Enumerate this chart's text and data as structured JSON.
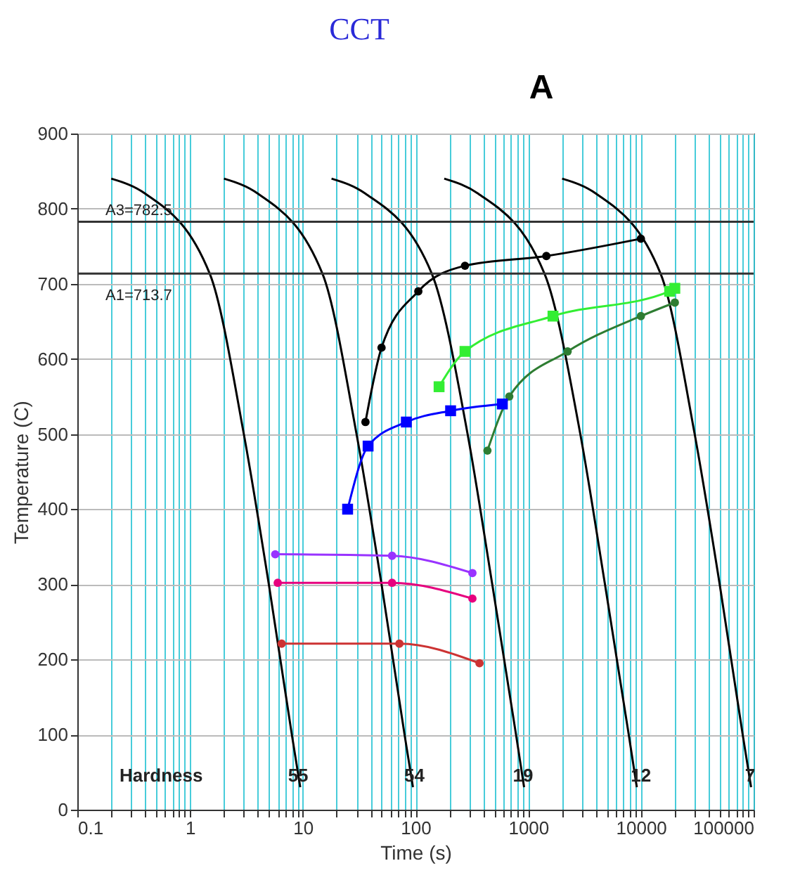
{
  "chart_data": {
    "type": "line",
    "title": "CCT",
    "xlabel": "Time (s)",
    "ylabel": "Temperature (C)",
    "log": "x",
    "xlim": [
      0.1,
      100000
    ],
    "ylim": [
      0,
      900
    ],
    "xticks": [
      0.1,
      {
        "value": 0.2,
        "label": null
      },
      {
        "value": 0.3,
        "label": null
      },
      {
        "value": 0.4,
        "label": null
      },
      {
        "value": 0.5,
        "label": null
      },
      {
        "value": 0.6,
        "label": null
      },
      {
        "value": 0.7,
        "label": null
      },
      {
        "value": 0.8,
        "label": null
      },
      {
        "value": 0.9,
        "label": null
      },
      1,
      {
        "value": 2,
        "label": null
      },
      {
        "value": 3,
        "label": null
      },
      {
        "value": 4,
        "label": null
      },
      {
        "value": 5,
        "label": null
      },
      {
        "value": 6,
        "label": null
      },
      {
        "value": 7,
        "label": null
      },
      {
        "value": 8,
        "label": null
      },
      {
        "value": 9,
        "label": null
      },
      10,
      {
        "value": 20,
        "label": null
      },
      {
        "value": 30,
        "label": null
      },
      {
        "value": 40,
        "label": null
      },
      {
        "value": 50,
        "label": null
      },
      {
        "value": 60,
        "label": null
      },
      {
        "value": 70,
        "label": null
      },
      {
        "value": 80,
        "label": null
      },
      {
        "value": 90,
        "label": null
      },
      100,
      {
        "value": 200,
        "label": null
      },
      {
        "value": 300,
        "label": null
      },
      {
        "value": 400,
        "label": null
      },
      {
        "value": 500,
        "label": null
      },
      {
        "value": 600,
        "label": null
      },
      {
        "value": 700,
        "label": null
      },
      {
        "value": 800,
        "label": null
      },
      {
        "value": 900,
        "label": null
      },
      1000,
      {
        "value": 2000,
        "label": null
      },
      {
        "value": 3000,
        "label": null
      },
      {
        "value": 4000,
        "label": null
      },
      {
        "value": 5000,
        "label": null
      },
      {
        "value": 6000,
        "label": null
      },
      {
        "value": 7000,
        "label": null
      },
      {
        "value": 8000,
        "label": null
      },
      {
        "value": 9000,
        "label": null
      },
      10000,
      {
        "value": 20000,
        "label": null
      },
      {
        "value": 30000,
        "label": null
      },
      {
        "value": 40000,
        "label": null
      },
      {
        "value": 50000,
        "label": null
      },
      {
        "value": 60000,
        "label": null
      },
      {
        "value": 70000,
        "label": null
      },
      {
        "value": 80000,
        "label": null
      },
      {
        "value": 90000,
        "label": null
      },
      100000
    ],
    "yticks": [
      0,
      100,
      200,
      300,
      400,
      500,
      600,
      700,
      800,
      900
    ],
    "grid": true,
    "series": [
      {
        "color": "#000000",
        "marker": "none",
        "x": [
          0.2,
          0.4,
          1.5,
          3,
          5,
          8,
          9.5
        ],
        "values": [
          840,
          820,
          713,
          500,
          300,
          100,
          30
        ]
      },
      {
        "color": "#000000",
        "marker": "none",
        "x": [
          2,
          4,
          15,
          30,
          50,
          80,
          95
        ],
        "values": [
          840,
          820,
          713,
          500,
          300,
          100,
          30
        ]
      },
      {
        "color": "#000000",
        "marker": "none",
        "x": [
          18,
          36,
          140,
          290,
          480,
          780,
          920
        ],
        "values": [
          840,
          820,
          713,
          500,
          300,
          100,
          30
        ]
      },
      {
        "color": "#000000",
        "marker": "none",
        "x": [
          180,
          360,
          1400,
          2900,
          4800,
          7800,
          9200
        ],
        "values": [
          840,
          820,
          713,
          500,
          300,
          100,
          30
        ]
      },
      {
        "color": "#000000",
        "marker": "none",
        "x": [
          2000,
          4000,
          15000,
          30000,
          50000,
          80000,
          95000
        ],
        "values": [
          840,
          820,
          713,
          500,
          300,
          100,
          30
        ]
      },
      {
        "color": "#000000",
        "marker": "circle",
        "x": [
          36,
          50,
          106,
          275,
          1450,
          10000
        ],
        "values": [
          516,
          615,
          690,
          724,
          737,
          760
        ]
      },
      {
        "color": "#33ee33",
        "marker": "square",
        "x": [
          162,
          275,
          1660,
          18000,
          20000
        ],
        "values": [
          563,
          610,
          657,
          690,
          694
        ]
      },
      {
        "color": "#2e7d32",
        "marker": "circle",
        "x": [
          435,
          680,
          2240,
          10000,
          20000
        ],
        "values": [
          478,
          550,
          610,
          657,
          675
        ]
      },
      {
        "color": "#0000ff",
        "marker": "square",
        "x": [
          25,
          38,
          83,
          205,
          590
        ],
        "values": [
          400,
          484,
          516,
          531,
          540
        ]
      },
      {
        "color": "#9933ff",
        "marker": "circle",
        "x": [
          5.7,
          62,
          320
        ],
        "values": [
          340,
          338,
          315
        ]
      },
      {
        "color": "#e6007e",
        "marker": "circle",
        "x": [
          6,
          62,
          320
        ],
        "values": [
          302,
          302,
          281
        ]
      },
      {
        "color": "#cc3333",
        "marker": "circle",
        "x": [
          6.5,
          72,
          370
        ],
        "values": [
          221,
          221,
          195
        ]
      }
    ],
    "ref_lines": [
      {
        "axis": "y",
        "value": 782.5,
        "label": "A3=782.5",
        "color": "#333333"
      },
      {
        "axis": "y",
        "value": 713.7,
        "label": "A1=713.7",
        "color": "#333333"
      }
    ],
    "annotations": [
      "A",
      "Hardness",
      {
        "text": "55",
        "x": 9.1,
        "y": 45
      },
      {
        "text": "54",
        "x": 98,
        "y": 45
      },
      {
        "text": "19",
        "x": 900,
        "y": 45
      },
      {
        "text": "12",
        "x": 10000,
        "y": 45
      },
      {
        "text": "7",
        "x": 93000,
        "y": 45
      }
    ]
  }
}
